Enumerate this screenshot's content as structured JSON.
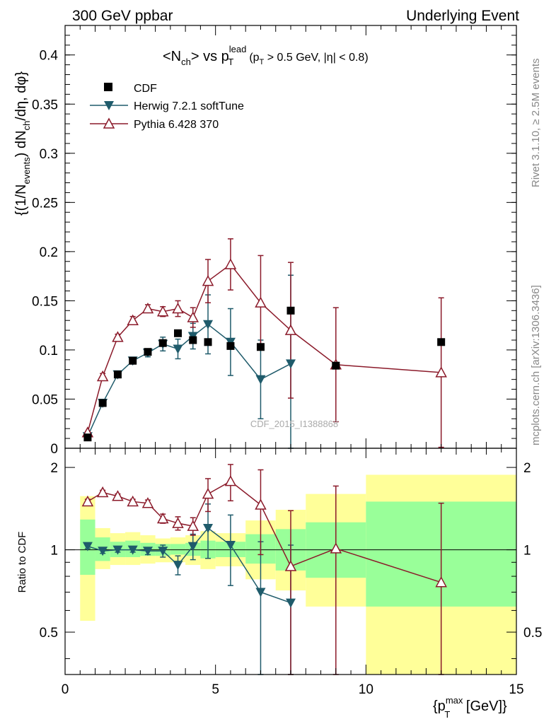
{
  "header": {
    "left": "300 GeV ppbar",
    "right": "Underlying Event",
    "side_top": "Rivet 3.1.10, ≥ 2.5M events",
    "side_bottom": "mcplots.cern.ch [arXiv:1306.3436]",
    "watermark": "CDF_2015_I1388868"
  },
  "colors": {
    "cdf": "#000000",
    "herwig": "#1f5b6b",
    "pythia": "#8b1a2a",
    "band_inner": "#99ff99",
    "band_outer": "#ffff99"
  },
  "chart_data": [
    {
      "type": "scatter",
      "panel": "main",
      "title": "<N_ch> vs p_T^lead (p_T > 0.5 GeV, |η| < 0.8)",
      "title_parts": {
        "prefix": "<N",
        "ch_sub": "ch",
        "vs": "> vs p",
        "lead_sup": "lead",
        "t_sub": "T",
        "cuts_pre": "(p",
        "cuts_t": "T",
        "cuts_post": " > 0.5 GeV, |η| < 0.8)"
      },
      "ylabel": "{(1/N_events) dN_ch/dη, dφ}",
      "ylabel_parts": {
        "p1": "{(1/N",
        "events": "events",
        "p2": ") dN",
        "ch": "ch",
        "p3": "/dη, dφ}"
      },
      "xlim": [
        0,
        15
      ],
      "ylim": [
        0,
        0.43
      ],
      "yticks": [
        0,
        0.05,
        0.1,
        0.15,
        0.2,
        0.25,
        0.3,
        0.35,
        0.4
      ],
      "ytick_labels": [
        "0",
        "0.05",
        "0.1",
        "0.15",
        "0.2",
        "0.25",
        "0.3",
        "0.35",
        "0.4"
      ],
      "legend": [
        "CDF",
        "Herwig 7.2.1 softTune",
        "Pythia 6.428 370"
      ],
      "legend_position": "top-left",
      "series": [
        {
          "name": "CDF",
          "marker": "square",
          "x": [
            0.75,
            1.25,
            1.75,
            2.25,
            2.75,
            3.25,
            3.75,
            4.25,
            4.75,
            5.5,
            6.5,
            7.5,
            9.0,
            12.5
          ],
          "y": [
            0.011,
            0.046,
            0.075,
            0.089,
            0.098,
            0.107,
            0.117,
            0.11,
            0.108,
            0.104,
            0.103,
            0.14,
            0.084,
            0.108
          ]
        },
        {
          "name": "Herwig 7.2.1 softTune",
          "marker": "triangle-down",
          "x": [
            0.75,
            1.25,
            1.75,
            2.25,
            2.75,
            3.25,
            3.75,
            4.25,
            4.75,
            5.5,
            6.5,
            7.5
          ],
          "y": [
            0.012,
            0.046,
            0.075,
            0.089,
            0.097,
            0.106,
            0.101,
            0.114,
            0.126,
            0.108,
            0.07,
            0.086
          ],
          "yerr": [
            0.001,
            0.002,
            0.002,
            0.003,
            0.004,
            0.007,
            0.01,
            0.013,
            0.03,
            0.034,
            0.04,
            0.09
          ]
        },
        {
          "name": "Pythia 6.428 370",
          "marker": "triangle-up-open",
          "x": [
            0.75,
            1.25,
            1.75,
            2.25,
            2.75,
            3.25,
            3.75,
            4.25,
            4.75,
            5.5,
            6.5,
            7.5,
            9.0,
            12.5
          ],
          "y": [
            0.016,
            0.073,
            0.113,
            0.13,
            0.142,
            0.139,
            0.142,
            0.133,
            0.17,
            0.187,
            0.148,
            0.12,
            0.085,
            0.077
          ],
          "yerr": [
            0.001,
            0.003,
            0.003,
            0.004,
            0.004,
            0.005,
            0.008,
            0.01,
            0.022,
            0.026,
            0.048,
            0.069,
            0.058,
            0.076
          ]
        }
      ]
    },
    {
      "type": "scatter",
      "panel": "ratio",
      "ylabel": "Ratio to CDF",
      "xlabel": "{p_T^max [GeV]}",
      "xlabel_parts": {
        "p1": "{p",
        "t_sub": "T",
        "max_sup": "max",
        "p2": " [GeV]}"
      },
      "xlim": [
        0,
        15
      ],
      "ylim": [
        0.35,
        2.35
      ],
      "ytick_labels": [
        "0.5",
        "1",
        "2"
      ],
      "ytick_values": [
        0.5,
        1,
        2
      ],
      "xtick_labels": [
        "0",
        "5",
        "10",
        "15"
      ],
      "xtick_values": [
        0,
        5,
        10,
        15
      ],
      "bands": [
        {
          "xlo": 0.5,
          "xhi": 1.0,
          "in_lo": 0.81,
          "in_hi": 1.29,
          "out_lo": 0.55,
          "out_hi": 1.57
        },
        {
          "xlo": 1.0,
          "xhi": 1.5,
          "in_lo": 0.91,
          "in_hi": 1.11,
          "out_lo": 0.85,
          "out_hi": 1.2
        },
        {
          "xlo": 1.5,
          "xhi": 2.0,
          "in_lo": 0.94,
          "in_hi": 1.07,
          "out_lo": 0.88,
          "out_hi": 1.15
        },
        {
          "xlo": 2.0,
          "xhi": 2.5,
          "in_lo": 0.94,
          "in_hi": 1.08,
          "out_lo": 0.88,
          "out_hi": 1.16
        },
        {
          "xlo": 2.5,
          "xhi": 3.0,
          "in_lo": 0.95,
          "in_hi": 1.06,
          "out_lo": 0.89,
          "out_hi": 1.13
        },
        {
          "xlo": 3.0,
          "xhi": 3.5,
          "in_lo": 0.95,
          "in_hi": 1.05,
          "out_lo": 0.9,
          "out_hi": 1.1
        },
        {
          "xlo": 3.5,
          "xhi": 4.0,
          "in_lo": 0.96,
          "in_hi": 1.05,
          "out_lo": 0.9,
          "out_hi": 1.11
        },
        {
          "xlo": 4.0,
          "xhi": 4.5,
          "in_lo": 0.95,
          "in_hi": 1.06,
          "out_lo": 0.88,
          "out_hi": 1.13
        },
        {
          "xlo": 4.5,
          "xhi": 5.0,
          "in_lo": 0.93,
          "in_hi": 1.08,
          "out_lo": 0.85,
          "out_hi": 1.17
        },
        {
          "xlo": 5.0,
          "xhi": 6.0,
          "in_lo": 0.94,
          "in_hi": 1.07,
          "out_lo": 0.87,
          "out_hi": 1.15
        },
        {
          "xlo": 6.0,
          "xhi": 7.0,
          "in_lo": 0.89,
          "in_hi": 1.14,
          "out_lo": 0.78,
          "out_hi": 1.28
        },
        {
          "xlo": 7.0,
          "xhi": 8.0,
          "in_lo": 0.84,
          "in_hi": 1.19,
          "out_lo": 0.71,
          "out_hi": 1.4
        },
        {
          "xlo": 8.0,
          "xhi": 10.0,
          "in_lo": 0.79,
          "in_hi": 1.26,
          "out_lo": 0.62,
          "out_hi": 1.6
        },
        {
          "xlo": 10.0,
          "xhi": 15.0,
          "in_lo": 0.62,
          "in_hi": 1.5,
          "out_lo": 0.35,
          "out_hi": 1.88
        }
      ],
      "series": [
        {
          "name": "Herwig 7.2.1 softTune",
          "x": [
            0.75,
            1.25,
            1.75,
            2.25,
            2.75,
            3.25,
            3.75,
            4.25,
            4.75,
            5.5,
            6.5,
            7.5
          ],
          "y": [
            1.03,
            0.99,
            1.0,
            1.0,
            0.99,
            0.99,
            0.88,
            1.03,
            1.2,
            1.04,
            0.7,
            0.64
          ],
          "yerr": [
            0.02,
            0.02,
            0.02,
            0.02,
            0.03,
            0.05,
            0.07,
            0.11,
            0.27,
            0.3,
            0.37,
            0.4
          ]
        },
        {
          "name": "Pythia 6.428 370",
          "x": [
            0.75,
            1.25,
            1.75,
            2.25,
            2.75,
            3.25,
            3.75,
            4.25,
            4.75,
            5.5,
            6.5,
            7.5,
            9.0,
            12.5
          ],
          "y": [
            1.5,
            1.62,
            1.57,
            1.5,
            1.48,
            1.3,
            1.25,
            1.22,
            1.6,
            1.78,
            1.46,
            0.87,
            1.01,
            0.76
          ],
          "yerr": [
            0.03,
            0.03,
            0.03,
            0.03,
            0.04,
            0.05,
            0.07,
            0.09,
            0.22,
            0.27,
            0.5,
            0.52,
            0.7,
            0.72
          ]
        }
      ]
    }
  ]
}
